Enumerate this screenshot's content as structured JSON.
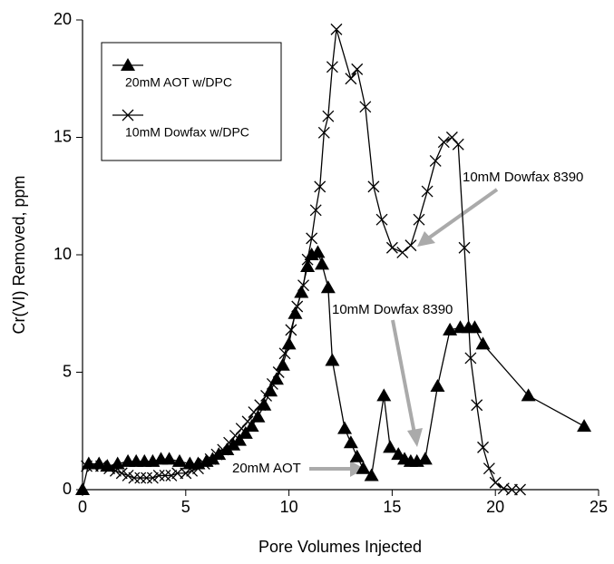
{
  "chart_data": {
    "type": "line",
    "xlabel": "Pore Volumes Injected",
    "ylabel": "Cr(VI) Removed, ppm",
    "xlim": [
      0,
      25
    ],
    "xticks": [
      0,
      5,
      10,
      15,
      20,
      25
    ],
    "ylim": [
      0,
      20
    ],
    "yticks": [
      0,
      5,
      10,
      15,
      20
    ],
    "grid": false,
    "legend": "upper left",
    "series": [
      {
        "name": "20mM AOT w/DPC",
        "color": "#000000",
        "marker": "triangle",
        "x": [
          0,
          0.3,
          0.8,
          1.2,
          1.7,
          2.2,
          2.6,
          3.0,
          3.4,
          3.8,
          4.2,
          4.7,
          5.2,
          5.6,
          6.0,
          6.3,
          6.6,
          7.0,
          7.3,
          7.6,
          7.9,
          8.2,
          8.5,
          8.8,
          9.1,
          9.4,
          9.7,
          10.0,
          10.3,
          10.6,
          10.9,
          11.1,
          11.4,
          11.6,
          11.9,
          12.1,
          12.7,
          13.0,
          13.3,
          13.6,
          14.0,
          14.6,
          14.9,
          15.3,
          15.6,
          15.9,
          16.2,
          16.6,
          17.2,
          17.8,
          18.3,
          18.7,
          19.0,
          19.4,
          21.6,
          24.3
        ],
        "values": [
          0,
          1.1,
          1.1,
          1.0,
          1.1,
          1.2,
          1.2,
          1.2,
          1.2,
          1.3,
          1.3,
          1.2,
          1.1,
          1.1,
          1.2,
          1.3,
          1.5,
          1.7,
          1.9,
          2.1,
          2.4,
          2.7,
          3.1,
          3.6,
          4.2,
          4.7,
          5.3,
          6.2,
          7.5,
          8.4,
          9.5,
          10.0,
          10.1,
          9.6,
          8.6,
          5.5,
          2.6,
          2.0,
          1.4,
          0.9,
          0.6,
          4.0,
          1.8,
          1.5,
          1.3,
          1.2,
          1.2,
          1.3,
          4.4,
          6.8,
          6.9,
          6.9,
          6.9,
          6.2,
          4.0,
          2.7
        ]
      },
      {
        "name": "10mM Dowfax w/DPC",
        "color": "#000000",
        "marker": "x",
        "x": [
          0.2,
          0.5,
          0.9,
          1.3,
          1.6,
          1.9,
          2.2,
          2.5,
          2.8,
          3.1,
          3.4,
          3.7,
          4.0,
          4.3,
          4.6,
          5.0,
          5.3,
          5.6,
          5.9,
          6.2,
          6.5,
          6.8,
          7.1,
          7.4,
          7.7,
          8.0,
          8.3,
          8.6,
          8.9,
          9.2,
          9.5,
          9.8,
          10.1,
          10.4,
          10.7,
          10.9,
          11.1,
          11.3,
          11.5,
          11.7,
          11.9,
          12.1,
          12.3,
          13.0,
          13.3,
          13.7,
          14.1,
          14.5,
          15.0,
          15.5,
          15.9,
          16.3,
          16.7,
          17.1,
          17.5,
          17.9,
          18.2,
          18.5,
          18.8,
          19.1,
          19.4,
          19.7,
          20.0,
          20.4,
          20.8,
          21.2
        ],
        "values": [
          1.0,
          1.0,
          1.0,
          0.9,
          0.8,
          0.7,
          0.6,
          0.5,
          0.5,
          0.5,
          0.5,
          0.6,
          0.6,
          0.6,
          0.7,
          0.7,
          0.8,
          0.9,
          1.1,
          1.3,
          1.5,
          1.7,
          2.0,
          2.3,
          2.6,
          2.9,
          3.3,
          3.6,
          4.0,
          4.5,
          5.0,
          5.8,
          6.8,
          7.8,
          8.7,
          9.8,
          10.7,
          11.9,
          12.9,
          15.2,
          15.9,
          18.0,
          19.6,
          17.5,
          17.9,
          16.3,
          12.9,
          11.5,
          10.3,
          10.1,
          10.4,
          11.5,
          12.7,
          14.0,
          14.8,
          15.0,
          14.7,
          10.3,
          5.6,
          3.6,
          1.8,
          0.9,
          0.3,
          0.05,
          0,
          0
        ]
      }
    ],
    "annotations": [
      "10mM Dowfax 8390",
      "10mM Dowfax 8390",
      "20mM AOT"
    ]
  }
}
